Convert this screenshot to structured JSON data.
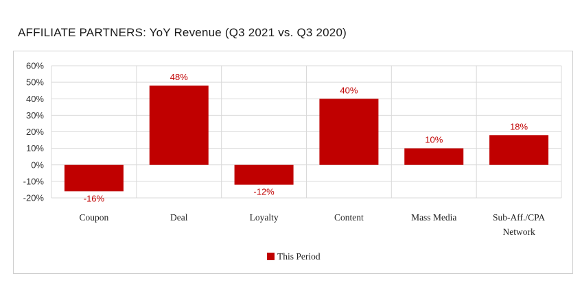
{
  "title": "AFFILIATE PARTNERS:  YoY Revenue (Q3 2021 vs. Q3 2020)",
  "chart_data": {
    "type": "bar",
    "title": "AFFILIATE PARTNERS:  YoY Revenue (Q3 2021 vs. Q3 2020)",
    "categories": [
      "Coupon",
      "Deal",
      "Loyalty",
      "Content",
      "Mass Media",
      "Sub-Aff./CPA Network"
    ],
    "category_lines": [
      [
        "Coupon"
      ],
      [
        "Deal"
      ],
      [
        "Loyalty"
      ],
      [
        "Content"
      ],
      [
        "Mass Media"
      ],
      [
        "Sub-Aff./CPA",
        "Network"
      ]
    ],
    "series": [
      {
        "name": "This Period",
        "values": [
          -16,
          48,
          -12,
          40,
          10,
          18
        ],
        "color": "#c00000"
      }
    ],
    "data_labels": [
      "-16%",
      "48%",
      "-12%",
      "40%",
      "10%",
      "18%"
    ],
    "ylim": [
      -20,
      60
    ],
    "yticks": [
      60,
      50,
      40,
      30,
      20,
      10,
      0,
      -10,
      -20
    ],
    "ytick_labels": [
      "60%",
      "50%",
      "40%",
      "30%",
      "20%",
      "10%",
      "0%",
      "-10%",
      "-20%"
    ],
    "xlabel": "",
    "ylabel": "",
    "grid": true,
    "legend": "bottom-center"
  }
}
